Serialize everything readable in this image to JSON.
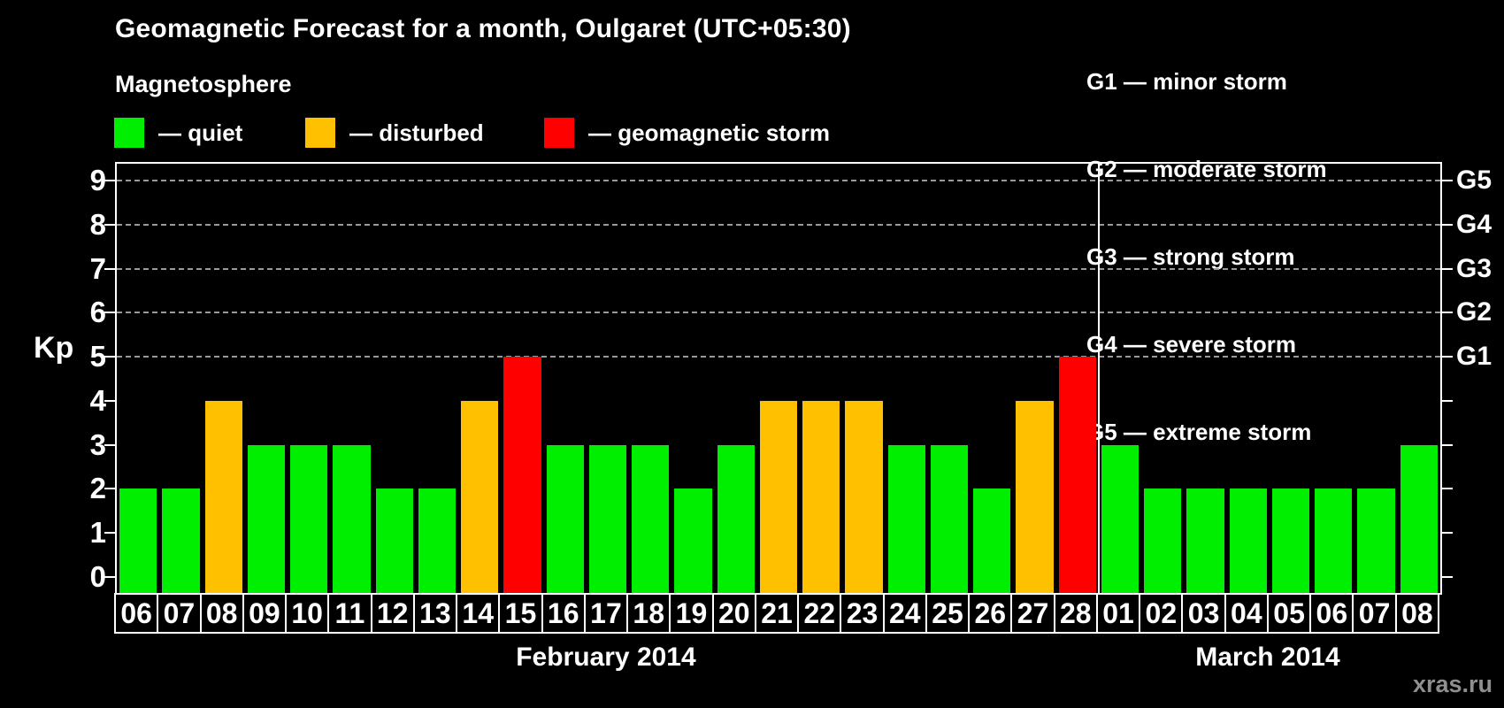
{
  "header": {
    "title": "Geomagnetic Forecast for a month, Oulgaret (UTC+05:30)",
    "magnetosphere_label": "Magnetosphere",
    "legend": [
      {
        "swatch": "#00ef00",
        "label": "— quiet"
      },
      {
        "swatch": "#ffc000",
        "label": "— disturbed"
      },
      {
        "swatch": "#ff0000",
        "label": "— geomagnetic storm"
      }
    ],
    "g_scale": [
      "G1 — minor storm",
      "G2 — moderate storm",
      "G3 — strong storm",
      "G4 — severe storm",
      "G5 — extreme storm"
    ]
  },
  "watermark": "xras.ru",
  "chart_data": {
    "type": "bar",
    "title": "Geomagnetic Forecast for a month, Oulgaret (UTC+05:30)",
    "ylabel": "Kp",
    "ylim": [
      0,
      9
    ],
    "yticks": [
      0,
      1,
      2,
      3,
      4,
      5,
      6,
      7,
      8,
      9
    ],
    "gridlines_at": [
      5,
      6,
      7,
      8,
      9
    ],
    "grid_style": "dashed horizontal",
    "legend_position": "top-left",
    "right_ticks": [
      {
        "value": 5,
        "label": "G1"
      },
      {
        "value": 6,
        "label": "G2"
      },
      {
        "value": 7,
        "label": "G3"
      },
      {
        "value": 8,
        "label": "G4"
      },
      {
        "value": 9,
        "label": "G5"
      }
    ],
    "colors": {
      "quiet": "#00ef00",
      "disturbed": "#ffc000",
      "storm": "#ff0000"
    },
    "months": [
      {
        "label": "February 2014",
        "days": 23
      },
      {
        "label": "March 2014",
        "days": 8
      }
    ],
    "bars": [
      {
        "day": "06",
        "kp": 2,
        "state": "quiet"
      },
      {
        "day": "07",
        "kp": 2,
        "state": "quiet"
      },
      {
        "day": "08",
        "kp": 4,
        "state": "disturbed"
      },
      {
        "day": "09",
        "kp": 3,
        "state": "quiet"
      },
      {
        "day": "10",
        "kp": 3,
        "state": "quiet"
      },
      {
        "day": "11",
        "kp": 3,
        "state": "quiet"
      },
      {
        "day": "12",
        "kp": 2,
        "state": "quiet"
      },
      {
        "day": "13",
        "kp": 2,
        "state": "quiet"
      },
      {
        "day": "14",
        "kp": 4,
        "state": "disturbed"
      },
      {
        "day": "15",
        "kp": 5,
        "state": "storm"
      },
      {
        "day": "16",
        "kp": 3,
        "state": "quiet"
      },
      {
        "day": "17",
        "kp": 3,
        "state": "quiet"
      },
      {
        "day": "18",
        "kp": 3,
        "state": "quiet"
      },
      {
        "day": "19",
        "kp": 2,
        "state": "quiet"
      },
      {
        "day": "20",
        "kp": 3,
        "state": "quiet"
      },
      {
        "day": "21",
        "kp": 4,
        "state": "disturbed"
      },
      {
        "day": "22",
        "kp": 4,
        "state": "disturbed"
      },
      {
        "day": "23",
        "kp": 4,
        "state": "disturbed"
      },
      {
        "day": "24",
        "kp": 3,
        "state": "quiet"
      },
      {
        "day": "25",
        "kp": 3,
        "state": "quiet"
      },
      {
        "day": "26",
        "kp": 2,
        "state": "quiet"
      },
      {
        "day": "27",
        "kp": 4,
        "state": "disturbed"
      },
      {
        "day": "28",
        "kp": 5,
        "state": "storm"
      },
      {
        "day": "01",
        "kp": 3,
        "state": "quiet"
      },
      {
        "day": "02",
        "kp": 2,
        "state": "quiet"
      },
      {
        "day": "03",
        "kp": 2,
        "state": "quiet"
      },
      {
        "day": "04",
        "kp": 2,
        "state": "quiet"
      },
      {
        "day": "05",
        "kp": 2,
        "state": "quiet"
      },
      {
        "day": "06",
        "kp": 2,
        "state": "quiet"
      },
      {
        "day": "07",
        "kp": 2,
        "state": "quiet"
      },
      {
        "day": "08",
        "kp": 3,
        "state": "quiet"
      }
    ]
  }
}
